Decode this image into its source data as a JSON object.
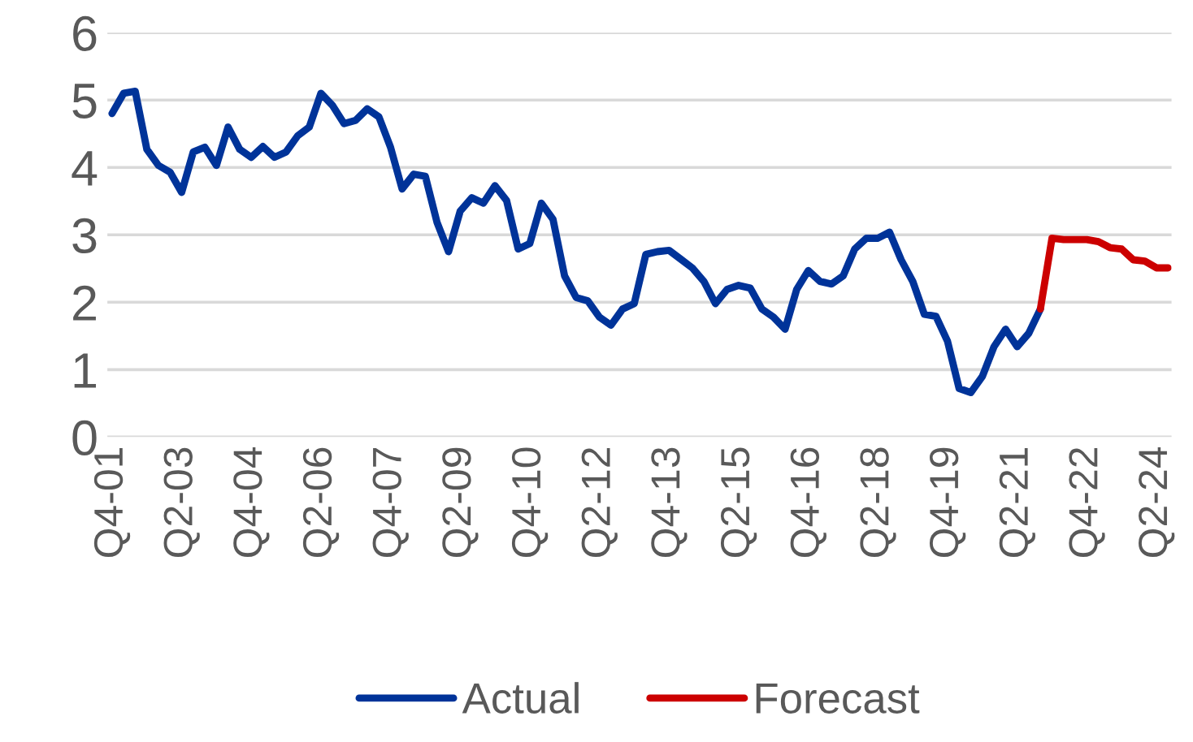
{
  "chart_data": {
    "type": "line",
    "categories": [
      "Q4-01",
      null,
      null,
      null,
      null,
      null,
      "Q2-03",
      null,
      null,
      null,
      null,
      null,
      "Q4-04",
      null,
      null,
      null,
      null,
      null,
      "Q2-06",
      null,
      null,
      null,
      null,
      null,
      "Q4-07",
      null,
      null,
      null,
      null,
      null,
      "Q2-09",
      null,
      null,
      null,
      null,
      null,
      "Q4-10",
      null,
      null,
      null,
      null,
      null,
      "Q2-12",
      null,
      null,
      null,
      null,
      null,
      "Q4-13",
      null,
      null,
      null,
      null,
      null,
      "Q2-15",
      null,
      null,
      null,
      null,
      null,
      "Q4-16",
      null,
      null,
      null,
      null,
      null,
      "Q2-18",
      null,
      null,
      null,
      null,
      null,
      "Q4-19",
      null,
      null,
      null,
      null,
      null,
      "Q2-21",
      null,
      null,
      null,
      null,
      null,
      "Q4-22",
      null,
      null,
      null,
      null,
      null,
      "Q2-24",
      null
    ],
    "series": [
      {
        "name": "Actual",
        "color": "#003399",
        "values": [
          4.8,
          5.1,
          5.13,
          4.27,
          4.03,
          3.93,
          3.63,
          4.23,
          4.3,
          4.03,
          4.6,
          4.27,
          4.15,
          4.31,
          4.15,
          4.23,
          4.47,
          4.6,
          5.1,
          4.92,
          4.65,
          4.7,
          4.87,
          4.75,
          4.3,
          3.68,
          3.9,
          3.87,
          3.19,
          2.75,
          3.35,
          3.55,
          3.47,
          3.73,
          3.51,
          2.79,
          2.87,
          3.47,
          3.23,
          2.39,
          2.07,
          2.02,
          1.78,
          1.66,
          1.9,
          1.98,
          2.71,
          2.75,
          2.77,
          2.64,
          2.51,
          2.31,
          1.98,
          2.19,
          2.25,
          2.21,
          1.9,
          1.78,
          1.6,
          2.19,
          2.47,
          2.31,
          2.27,
          2.39,
          2.79,
          2.95,
          2.95,
          3.04,
          2.63,
          2.31,
          1.82,
          1.79,
          1.42,
          0.72,
          0.66,
          0.9,
          1.34,
          1.6,
          1.34,
          1.54,
          1.9,
          null,
          null,
          null,
          null,
          null,
          null,
          null,
          null,
          null,
          null,
          null
        ]
      },
      {
        "name": "Forecast",
        "color": "#cc0000",
        "values": [
          null,
          null,
          null,
          null,
          null,
          null,
          null,
          null,
          null,
          null,
          null,
          null,
          null,
          null,
          null,
          null,
          null,
          null,
          null,
          null,
          null,
          null,
          null,
          null,
          null,
          null,
          null,
          null,
          null,
          null,
          null,
          null,
          null,
          null,
          null,
          null,
          null,
          null,
          null,
          null,
          null,
          null,
          null,
          null,
          null,
          null,
          null,
          null,
          null,
          null,
          null,
          null,
          null,
          null,
          null,
          null,
          null,
          null,
          null,
          null,
          null,
          null,
          null,
          null,
          null,
          null,
          null,
          null,
          null,
          null,
          null,
          null,
          null,
          null,
          null,
          null,
          null,
          null,
          null,
          null,
          1.9,
          2.95,
          2.93,
          2.93,
          2.93,
          2.9,
          2.81,
          2.79,
          2.63,
          2.61,
          2.51,
          2.51
        ]
      }
    ],
    "ylim": [
      0,
      6
    ],
    "yticks": [
      0,
      1,
      2,
      3,
      4,
      5,
      6
    ],
    "grid": "y",
    "legend": "bottom",
    "marker": "none",
    "line_style": "solid"
  }
}
